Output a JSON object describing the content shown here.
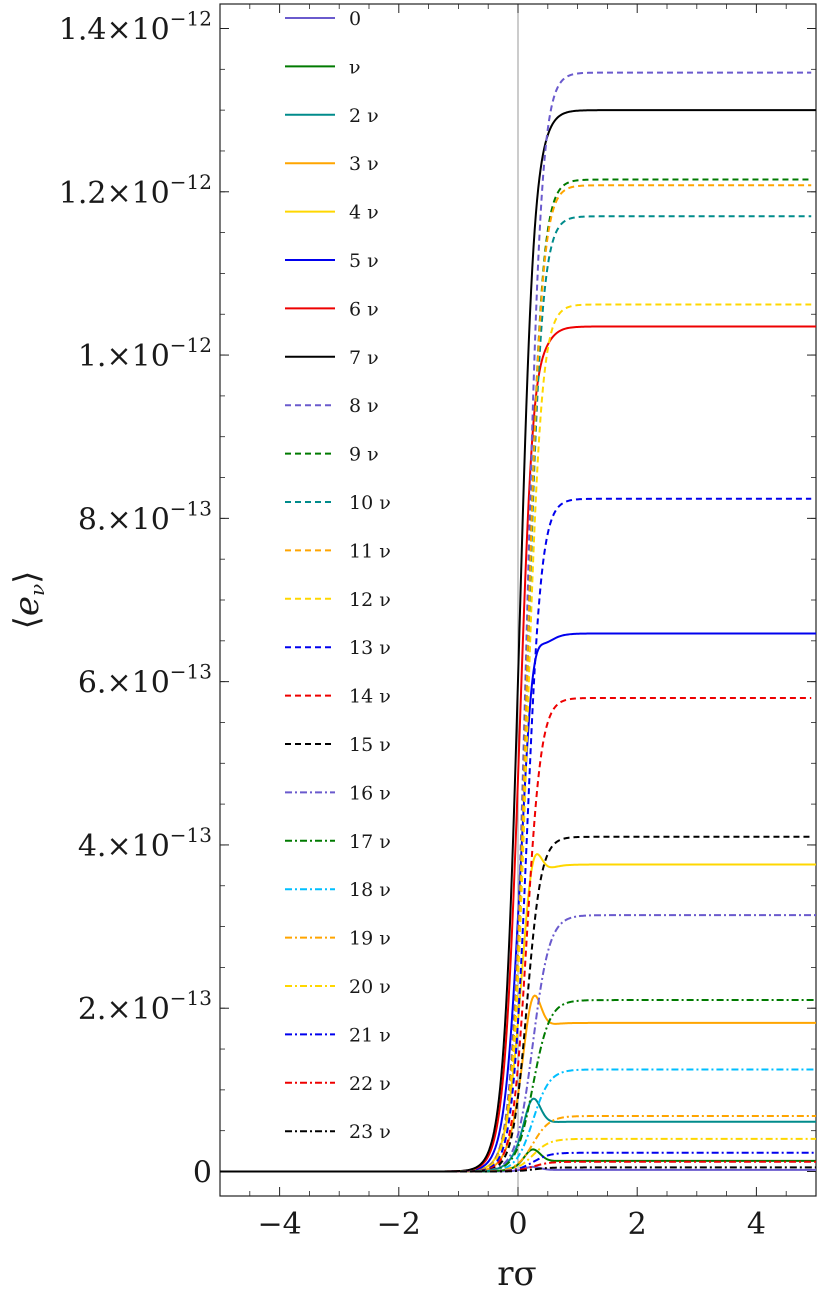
{
  "chart_data": {
    "type": "line",
    "xlabel": "rσ",
    "ylabel": "⟨e_ν⟩",
    "xlim": [
      -5,
      5
    ],
    "ylim": [
      -3e-14,
      1.43e-12
    ],
    "x_ticks": [
      -4,
      -2,
      0,
      2,
      4
    ],
    "x_tick_labels": [
      "−4",
      "−2",
      "0",
      "2",
      "4"
    ],
    "y_ticks": [
      0,
      2e-13,
      4e-13,
      6e-13,
      8e-13,
      1e-12,
      1.2e-12,
      1.4e-12
    ],
    "y_tick_labels": [
      {
        "mant": "0",
        "exp": ""
      },
      {
        "mant": "2.×10",
        "exp": "−13"
      },
      {
        "mant": "4.×10",
        "exp": "−13"
      },
      {
        "mant": "6.×10",
        "exp": "−13"
      },
      {
        "mant": "8.×10",
        "exp": "−13"
      },
      {
        "mant": "1.×10",
        "exp": "−12"
      },
      {
        "mant": "1.2×10",
        "exp": "−12"
      },
      {
        "mant": "1.4×10",
        "exp": "−12"
      }
    ],
    "grid": false,
    "legend_position": "top-left",
    "series": [
      {
        "name": "0",
        "color": "#6a5acd",
        "dash": "solid",
        "plateau": 2e-15,
        "peak": 6e-15
      },
      {
        "name": "ν",
        "color": "#007a00",
        "dash": "solid",
        "plateau": 1.3e-14,
        "peak": 2.9e-14
      },
      {
        "name": "2 ν",
        "color": "#008b8b",
        "dash": "solid",
        "plateau": 6.1e-14,
        "peak": 9.8e-14
      },
      {
        "name": "3 ν",
        "color": "#ffa500",
        "dash": "solid",
        "plateau": 1.82e-13,
        "peak": 2.4e-13
      },
      {
        "name": "4 ν",
        "color": "#ffd700",
        "dash": "solid",
        "plateau": 3.76e-13,
        "peak": 4.33e-13
      },
      {
        "name": "5 ν",
        "color": "#0000ee",
        "dash": "solid",
        "plateau": 6.59e-13,
        "peak": 7.03e-13
      },
      {
        "name": "6 ν",
        "color": "#ee0000",
        "dash": "solid",
        "plateau": 1.035e-12,
        "peak": 1.059e-12
      },
      {
        "name": "7 ν",
        "color": "#000000",
        "dash": "solid",
        "plateau": 1.3e-12,
        "peak": 1.309e-12
      },
      {
        "name": "8 ν",
        "color": "#6a5acd",
        "dash": "dashed",
        "plateau": 1.346e-12
      },
      {
        "name": "9 ν",
        "color": "#007a00",
        "dash": "dashed",
        "plateau": 1.215e-12
      },
      {
        "name": "10 ν",
        "color": "#008b8b",
        "dash": "dashed",
        "plateau": 1.17e-12
      },
      {
        "name": "11 ν",
        "color": "#ffa500",
        "dash": "dashed",
        "plateau": 1.208e-12
      },
      {
        "name": "12 ν",
        "color": "#ffd700",
        "dash": "dashed",
        "plateau": 1.062e-12
      },
      {
        "name": "13 ν",
        "color": "#0000ee",
        "dash": "dashed",
        "plateau": 8.24e-13
      },
      {
        "name": "14 ν",
        "color": "#ee0000",
        "dash": "dashed",
        "plateau": 5.8e-13
      },
      {
        "name": "15 ν",
        "color": "#000000",
        "dash": "dashed",
        "plateau": 4.1e-13
      },
      {
        "name": "16 ν",
        "color": "#6a5acd",
        "dash": "dashdot",
        "plateau": 3.14e-13
      },
      {
        "name": "17 ν",
        "color": "#007a00",
        "dash": "dashdot",
        "plateau": 2.1e-13
      },
      {
        "name": "18 ν",
        "color": "#00bfff",
        "dash": "dashdot",
        "plateau": 1.25e-13
      },
      {
        "name": "19 ν",
        "color": "#ffa500",
        "dash": "dashdot",
        "plateau": 6.8e-14
      },
      {
        "name": "20 ν",
        "color": "#ffd700",
        "dash": "dashdot",
        "plateau": 4e-14
      },
      {
        "name": "21 ν",
        "color": "#0000ee",
        "dash": "dashdot",
        "plateau": 2.3e-14
      },
      {
        "name": "22 ν",
        "color": "#ee0000",
        "dash": "dashdot",
        "plateau": 1.2e-14
      },
      {
        "name": "23 ν",
        "color": "#000000",
        "dash": "dashdot",
        "plateau": 5e-15
      }
    ]
  }
}
